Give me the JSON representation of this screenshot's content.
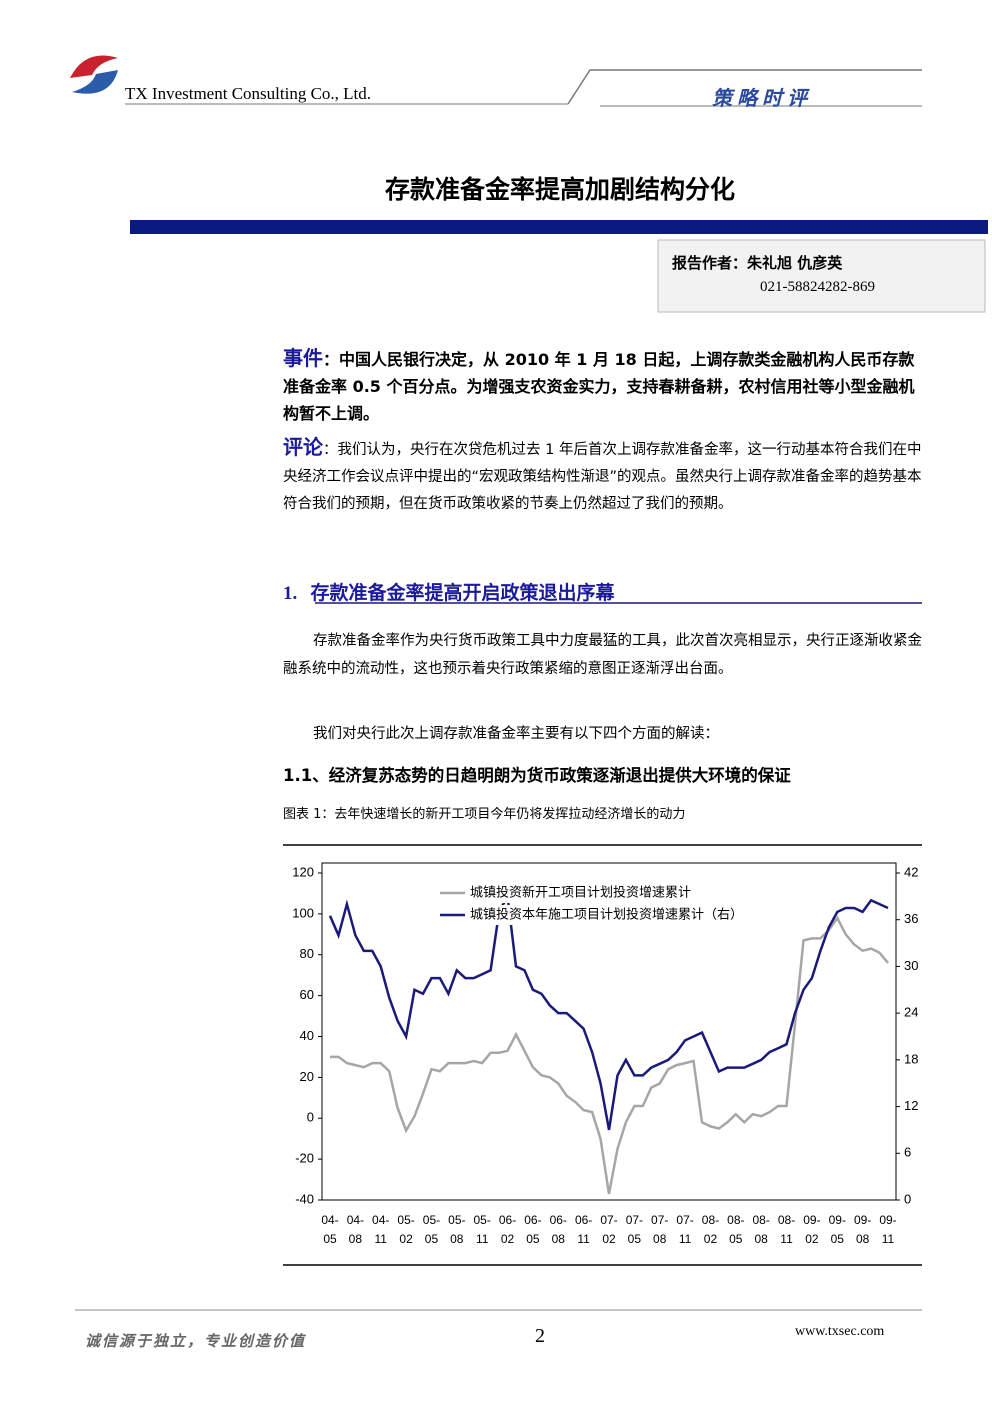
{
  "header": {
    "company": "TX Investment Consulting Co., Ltd.",
    "tag": "策略时评"
  },
  "title": "存款准备金率提高加剧结构分化",
  "author": {
    "label": "报告作者：朱礼旭 仇彦英",
    "phone": "021-58824282-869"
  },
  "event": {
    "label": "事件",
    "text": "：中国人民银行决定，从 2010 年 1 月 18 日起，上调存款类金融机构人民币存款准备金率 0.5 个百分点。为增强支农资金实力，支持春耕备耕，农村信用社等小型金融机构暂不上调。"
  },
  "comment": {
    "label": "评论",
    "text": "：我们认为，央行在次贷危机过去 1 年后首次上调存款准备金率，这一行动基本符合我们在中央经济工作会议点评中提出的“宏观政策结构性渐退”的观点。虽然央行上调存款准备金率的趋势基本符合我们的预期，但在货币政策收紧的节奏上仍然超过了我们的预期。"
  },
  "section": {
    "number": "1.",
    "title": "存款准备金率提高开启政策退出序幕"
  },
  "paragraphs": [
    "存款准备金率作为央行货币政策工具中力度最猛的工具，此次首次亮相显示，央行正逐渐收紧金融系统中的流动性，这也预示着央行政策紧缩的意图正逐渐浮出台面。",
    "我们对央行此次上调存款准备金率主要有以下四个方面的解读："
  ],
  "subsection": "1.1、经济复苏态势的日趋明朗为货币政策逐渐退出提供大环境的保证",
  "figure_caption": "图表 1：去年快速增长的新开工项目今年仍将发挥拉动经济增长的动力",
  "chart_data": {
    "type": "line",
    "categories": [
      "04-05",
      null,
      null,
      "04-08",
      null,
      null,
      "04-11",
      null,
      null,
      "05-02",
      null,
      null,
      "05-05",
      null,
      null,
      "05-08",
      null,
      null,
      "05-11",
      null,
      null,
      "06-02",
      null,
      null,
      "06-05",
      null,
      null,
      "06-08",
      null,
      null,
      "06-11",
      null,
      null,
      "07-02",
      null,
      null,
      "07-05",
      null,
      null,
      "07-08",
      null,
      null,
      "07-11",
      null,
      null,
      "08-02",
      null,
      null,
      "08-05",
      null,
      null,
      "08-08",
      null,
      null,
      "08-11",
      null,
      null,
      "09-02",
      null,
      null,
      "09-05",
      null,
      null,
      "09-08",
      null,
      null,
      "09-11"
    ],
    "series": [
      {
        "name": "城镇投资新开工项目计划投资增速累计",
        "color": "#a6a6a6",
        "values": [
          30,
          30,
          27,
          26,
          25,
          27,
          27,
          23,
          5,
          -6,
          1,
          12,
          24,
          23,
          27,
          27,
          27,
          28,
          27,
          32,
          32,
          33,
          41,
          33,
          25,
          21,
          20,
          17,
          11,
          8,
          4,
          3,
          -10,
          -37,
          -15,
          -2,
          6,
          6,
          15,
          17,
          24,
          26,
          27,
          28,
          -2,
          -4,
          -5,
          -2,
          2,
          -2,
          2,
          1,
          3,
          6,
          6,
          46,
          87,
          88,
          88,
          92,
          98,
          90,
          85,
          82,
          83,
          81,
          76
        ]
      },
      {
        "name": "城镇投资本年施工项目计划投资增速累计（右）",
        "color": "#1a1a7a",
        "axis": "y2",
        "values": [
          36.5,
          34,
          38,
          34,
          32,
          32,
          30,
          26,
          23,
          21,
          27,
          26.5,
          28.5,
          28.5,
          26.5,
          29.5,
          28.5,
          28.5,
          29,
          29.5,
          37,
          39,
          30,
          29.5,
          27,
          26.5,
          25,
          24,
          24,
          23,
          22,
          19,
          15,
          9,
          16,
          18,
          16,
          16,
          17,
          17.5,
          18,
          19,
          20.5,
          21,
          21.5,
          19,
          16.5,
          17,
          17,
          17,
          17.5,
          18,
          19,
          19.5,
          20,
          24,
          27,
          28.5,
          32,
          35,
          37,
          37.5,
          37.5,
          37,
          38.5,
          38,
          37.5
        ]
      }
    ],
    "ylim": [
      -40,
      120
    ],
    "yticks": [
      -40,
      -20,
      0,
      20,
      40,
      60,
      80,
      100,
      120
    ],
    "y2lim": [
      0,
      42
    ],
    "y2ticks": [
      0,
      6,
      12,
      18,
      24,
      30,
      36,
      42
    ],
    "grid": false
  },
  "footer": {
    "slogan": "诚信源于独立，专业创造价值",
    "page": "2",
    "url": "www.txsec.com"
  }
}
